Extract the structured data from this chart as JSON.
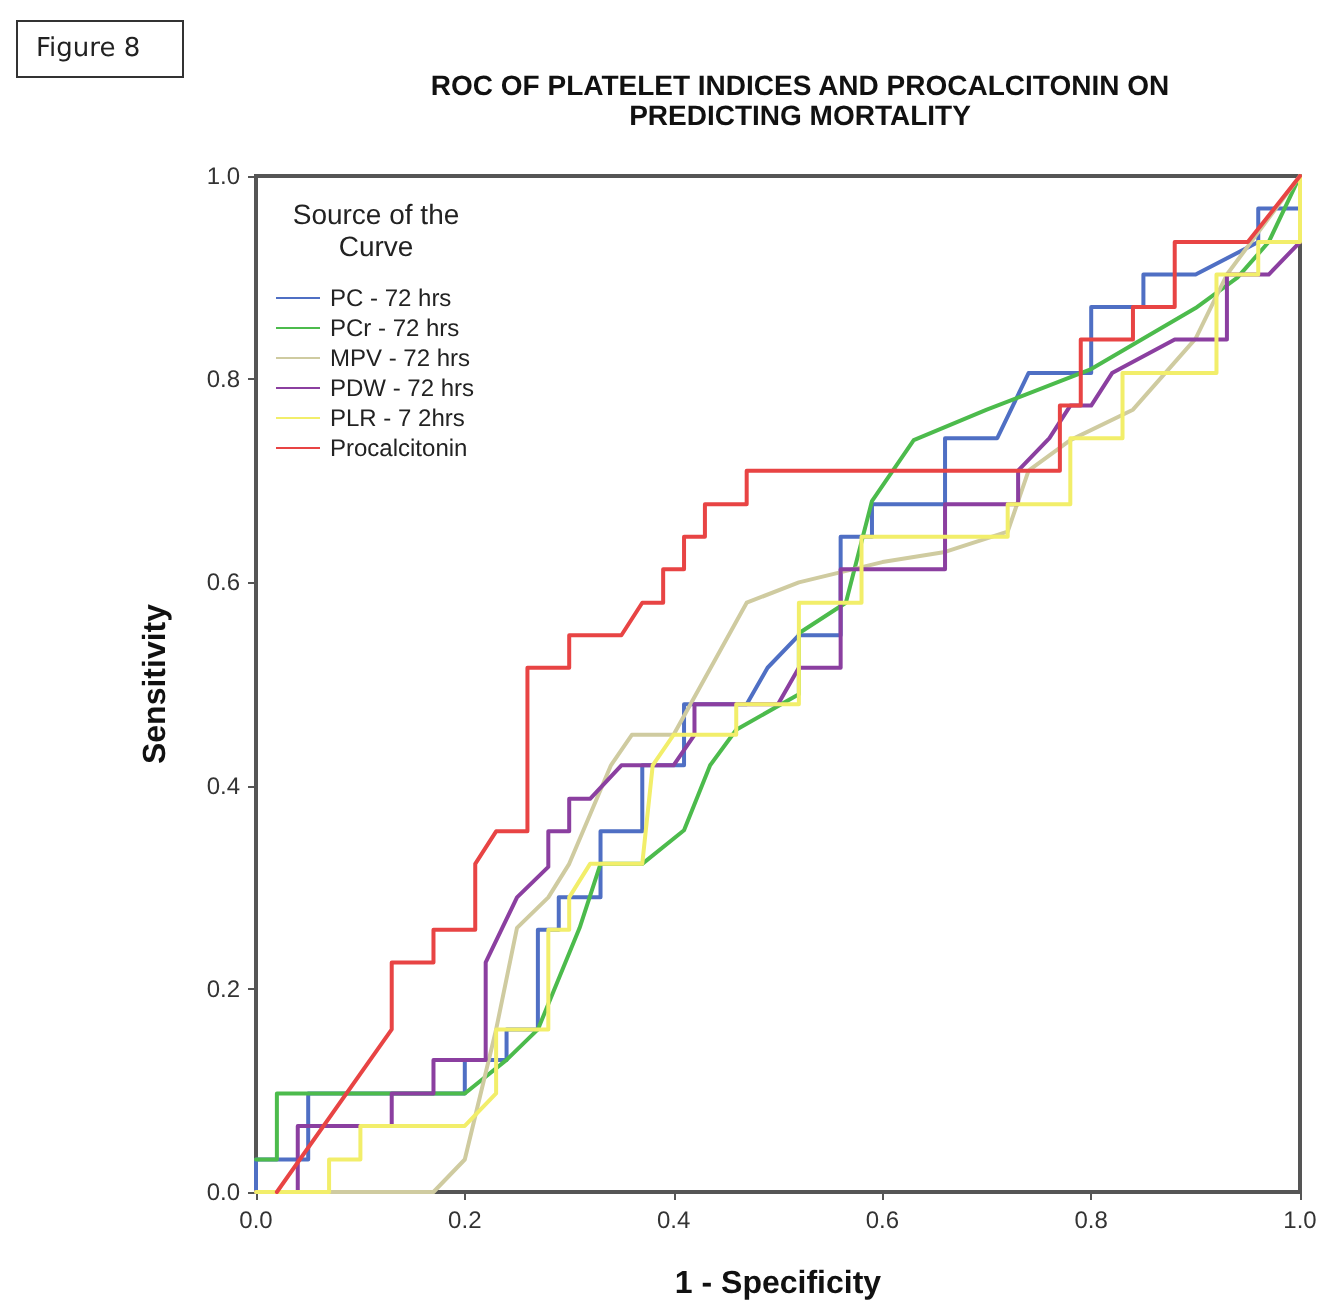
{
  "chart_data": {
    "type": "line",
    "title": "ROC OF PLATELET INDICES AND PROCALCITONIN ON\nPREDICTING MORTALITY",
    "annotations": [
      "Figure 8"
    ],
    "xlabel": "1 - Specificity",
    "ylabel": "Sensitivity",
    "legend_title": "Source of the\nCurve",
    "legend": "top left",
    "grid": false,
    "marker": "none",
    "line_style": "solid",
    "xlim": [
      0,
      1
    ],
    "ylim": [
      0,
      1
    ],
    "xticks": [
      {
        "value": 0,
        "label": "0.0"
      },
      0.2,
      0.4,
      0.6,
      0.8,
      {
        "value": 1,
        "label": "1.0"
      }
    ],
    "yticks": [
      {
        "value": 0,
        "label": "0.0"
      },
      0.2,
      0.4,
      0.6,
      0.8,
      {
        "value": 1,
        "label": "1.0"
      }
    ],
    "series": [
      {
        "name": "PC - 72 hrs",
        "color": "#4f6fc4",
        "x": [
          0,
          0,
          0.05,
          0.05,
          0.2,
          0.2,
          0.24,
          0.24,
          0.27,
          0.27,
          0.29,
          0.29,
          0.33,
          0.33,
          0.37,
          0.37,
          0.41,
          0.41,
          0.47,
          0.49,
          0.52,
          0.56,
          0.56,
          0.59,
          0.59,
          0.66,
          0.66,
          0.71,
          0.74,
          0.8,
          0.8,
          0.85,
          0.85,
          0.9,
          0.96,
          0.96,
          1,
          1
        ],
        "values": [
          0,
          0.032,
          0.032,
          0.097,
          0.097,
          0.13,
          0.13,
          0.16,
          0.16,
          0.258,
          0.258,
          0.29,
          0.29,
          0.355,
          0.355,
          0.42,
          0.42,
          0.48,
          0.48,
          0.516,
          0.548,
          0.548,
          0.645,
          0.645,
          0.677,
          0.677,
          0.742,
          0.742,
          0.806,
          0.806,
          0.871,
          0.871,
          0.903,
          0.903,
          0.935,
          0.968,
          0.968,
          1
        ]
      },
      {
        "name": "PCr - 72 hrs",
        "color": "#4cbb4c",
        "x": [
          0,
          0.02,
          0.02,
          0.2,
          0.24,
          0.27,
          0.31,
          0.33,
          0.37,
          0.41,
          0.435,
          0.46,
          0.52,
          0.52,
          0.565,
          0.59,
          0.63,
          0.7,
          0.8,
          0.85,
          0.9,
          0.94,
          0.97,
          1
        ],
        "values": [
          0.032,
          0.032,
          0.097,
          0.097,
          0.13,
          0.16,
          0.26,
          0.323,
          0.323,
          0.356,
          0.42,
          0.455,
          0.49,
          0.55,
          0.58,
          0.68,
          0.74,
          0.77,
          0.81,
          0.84,
          0.87,
          0.9,
          0.935,
          1
        ]
      },
      {
        "name": "MPV - 72 hrs",
        "color": "#cfcba0",
        "x": [
          0,
          0.17,
          0.2,
          0.23,
          0.25,
          0.28,
          0.3,
          0.34,
          0.36,
          0.4,
          0.47,
          0.52,
          0.6,
          0.66,
          0.72,
          0.74,
          0.78,
          0.84,
          0.9,
          0.93,
          1
        ],
        "values": [
          0,
          0,
          0.032,
          0.16,
          0.26,
          0.29,
          0.323,
          0.42,
          0.45,
          0.45,
          0.58,
          0.6,
          0.62,
          0.63,
          0.65,
          0.71,
          0.74,
          0.77,
          0.84,
          0.903,
          1
        ]
      },
      {
        "name": "PDW - 72 hrs",
        "color": "#8b3fa0",
        "x": [
          0,
          0.04,
          0.04,
          0.13,
          0.13,
          0.17,
          0.17,
          0.22,
          0.22,
          0.25,
          0.28,
          0.28,
          0.3,
          0.3,
          0.32,
          0.35,
          0.4,
          0.42,
          0.42,
          0.5,
          0.52,
          0.56,
          0.56,
          0.66,
          0.66,
          0.73,
          0.73,
          0.76,
          0.78,
          0.8,
          0.82,
          0.88,
          0.93,
          0.93,
          0.97,
          1,
          1
        ],
        "values": [
          0,
          0,
          0.065,
          0.065,
          0.097,
          0.097,
          0.13,
          0.13,
          0.226,
          0.29,
          0.32,
          0.355,
          0.355,
          0.387,
          0.387,
          0.42,
          0.42,
          0.45,
          0.48,
          0.48,
          0.516,
          0.516,
          0.613,
          0.613,
          0.677,
          0.677,
          0.71,
          0.742,
          0.774,
          0.774,
          0.806,
          0.839,
          0.839,
          0.903,
          0.903,
          0.935,
          1
        ]
      },
      {
        "name": "PLR - 7 2hrs",
        "color": "#f2ee6a",
        "x": [
          0,
          0.07,
          0.07,
          0.1,
          0.1,
          0.2,
          0.23,
          0.23,
          0.28,
          0.28,
          0.3,
          0.3,
          0.32,
          0.37,
          0.38,
          0.4,
          0.46,
          0.46,
          0.52,
          0.52,
          0.58,
          0.58,
          0.72,
          0.72,
          0.78,
          0.78,
          0.83,
          0.83,
          0.92,
          0.92,
          0.96,
          0.96,
          1,
          1
        ],
        "values": [
          0,
          0,
          0.032,
          0.032,
          0.065,
          0.065,
          0.097,
          0.16,
          0.16,
          0.258,
          0.258,
          0.29,
          0.323,
          0.323,
          0.42,
          0.45,
          0.45,
          0.48,
          0.48,
          0.58,
          0.58,
          0.645,
          0.645,
          0.677,
          0.677,
          0.742,
          0.742,
          0.806,
          0.806,
          0.903,
          0.903,
          0.935,
          0.935,
          1
        ]
      },
      {
        "name": "Procalcitonin",
        "color": "#e84444",
        "x": [
          0.02,
          0.13,
          0.13,
          0.17,
          0.17,
          0.21,
          0.21,
          0.23,
          0.26,
          0.26,
          0.3,
          0.3,
          0.35,
          0.37,
          0.39,
          0.39,
          0.41,
          0.41,
          0.43,
          0.43,
          0.47,
          0.47,
          0.77,
          0.77,
          0.79,
          0.79,
          0.84,
          0.84,
          0.88,
          0.88,
          0.95,
          1
        ],
        "values": [
          0,
          0.16,
          0.226,
          0.226,
          0.258,
          0.258,
          0.323,
          0.355,
          0.355,
          0.516,
          0.516,
          0.548,
          0.548,
          0.58,
          0.58,
          0.613,
          0.613,
          0.645,
          0.645,
          0.677,
          0.677,
          0.71,
          0.71,
          0.774,
          0.774,
          0.839,
          0.839,
          0.871,
          0.871,
          0.935,
          0.935,
          1
        ]
      }
    ]
  }
}
